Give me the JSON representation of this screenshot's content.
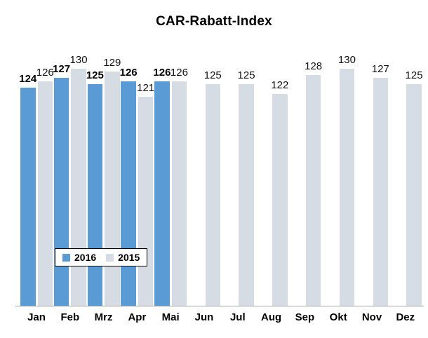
{
  "chart_data": {
    "type": "bar",
    "title": "CAR-Rabatt-Index",
    "categories": [
      "Jan",
      "Feb",
      "Mrz",
      "Apr",
      "Mai",
      "Jun",
      "Jul",
      "Aug",
      "Sep",
      "Okt",
      "Nov",
      "Dez"
    ],
    "series": [
      {
        "name": "2016",
        "color": "#5B9BD5",
        "label_bold": true,
        "values": [
          124,
          127,
          125,
          126,
          126,
          null,
          null,
          null,
          null,
          null,
          null,
          null
        ]
      },
      {
        "name": "2015",
        "color": "#D6DCE4",
        "label_bold": false,
        "values": [
          126,
          130,
          129,
          121,
          126,
          125,
          125,
          122,
          128,
          130,
          127,
          125
        ]
      }
    ],
    "data_labels": true,
    "grid": false,
    "y_axis_visible": false,
    "x_axis_line_color": "#A6A6A6",
    "legend": {
      "position": "inside-bottom-left",
      "entries": [
        "2016",
        "2015"
      ]
    }
  }
}
